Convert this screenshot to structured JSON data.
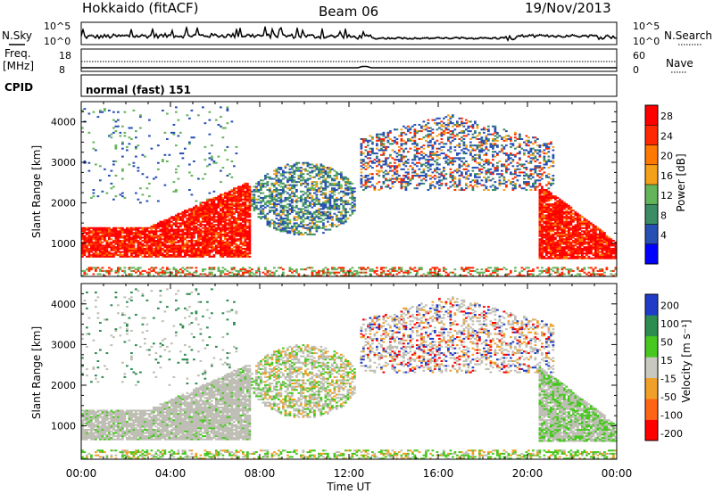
{
  "header": {
    "station": "Hokkaido (fitACF)",
    "beam": "Beam 06",
    "date": "19/Nov/2013"
  },
  "panels": {
    "nsky_label": "N.Sky",
    "nsearch_label": "N.Search",
    "freq_label_1": "Freq.",
    "freq_label_2": "[MHz]",
    "nave_label": "Nave",
    "cpid_label": "CPID",
    "cpid_value": "normal (fast) 151",
    "noise_ticks_left": [
      "10^5",
      "10^0"
    ],
    "noise_ticks_right": [
      "10^5",
      "10^0"
    ],
    "freq_ticks": [
      "18",
      "8"
    ],
    "nave_ticks": [
      "60",
      "0"
    ]
  },
  "colors": {
    "power_scale": [
      "#0000ff",
      "#2850b4",
      "#3c8c64",
      "#64b45a",
      "#f5a019",
      "#ff7800",
      "#ff2800",
      "#ff0000"
    ],
    "velocity_scale": [
      "#1e3cc8",
      "#2d8c50",
      "#46c81e",
      "#c8c8c0",
      "#f0a028",
      "#ff6414",
      "#ff0000"
    ],
    "ground_scatter": "#bebeb4"
  },
  "chart_data": [
    {
      "type": "heatmap",
      "title": "Power",
      "xlabel": "Time UT",
      "ylabel": "Slant Range [km]",
      "x_ticks": [
        "00:00",
        "04:00",
        "08:00",
        "12:00",
        "16:00",
        "20:00",
        "00:00"
      ],
      "y_ticks": [
        "1000",
        "2000",
        "3000",
        "4000"
      ],
      "xlim": [
        0,
        24
      ],
      "ylim": [
        180,
        4500
      ],
      "colorbar": {
        "label": "Power [dB]",
        "ticks": [
          "28",
          "24",
          "20",
          "16",
          "12",
          "8",
          "4"
        ],
        "range": [
          0,
          32
        ]
      }
    },
    {
      "type": "heatmap",
      "title": "Velocity",
      "xlabel": "Time UT",
      "ylabel": "Slant Range [km]",
      "x_ticks": [
        "00:00",
        "04:00",
        "08:00",
        "12:00",
        "16:00",
        "20:00",
        "00:00"
      ],
      "y_ticks": [
        "1000",
        "2000",
        "3000",
        "4000"
      ],
      "xlim": [
        0,
        24
      ],
      "ylim": [
        180,
        4500
      ],
      "colorbar": {
        "label": "Velocity [m s⁻¹]",
        "ticks": [
          "200",
          "100",
          "50",
          "15",
          "-15",
          "-50",
          "-100",
          "-200"
        ]
      }
    }
  ],
  "time_axis_label": "Time UT"
}
